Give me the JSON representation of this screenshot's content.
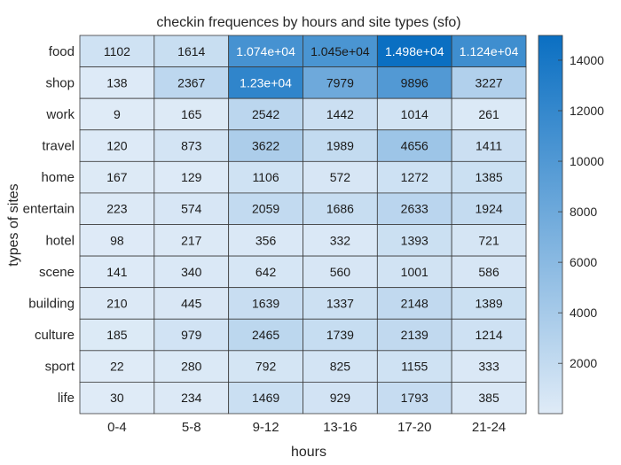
{
  "chart_data": {
    "type": "heatmap",
    "title": "checkin frequences by hours and site types (sfo)",
    "xlabel": "hours",
    "ylabel": "types of sites",
    "x_categories": [
      "0-4",
      "5-8",
      "9-12",
      "13-16",
      "17-20",
      "21-24"
    ],
    "y_categories": [
      "food",
      "shop",
      "work",
      "travel",
      "home",
      "entertain",
      "hotel",
      "scene",
      "building",
      "culture",
      "sport",
      "life"
    ],
    "values": [
      [
        1102,
        1614,
        10740,
        10450,
        14980,
        11240
      ],
      [
        138,
        2367,
        12300,
        7979,
        9896,
        3227
      ],
      [
        9,
        165,
        2542,
        1442,
        1014,
        261
      ],
      [
        120,
        873,
        3622,
        1989,
        4656,
        1411
      ],
      [
        167,
        129,
        1106,
        572,
        1272,
        1385
      ],
      [
        223,
        574,
        2059,
        1686,
        2633,
        1924
      ],
      [
        98,
        217,
        356,
        332,
        1393,
        721
      ],
      [
        141,
        340,
        642,
        560,
        1001,
        586
      ],
      [
        210,
        445,
        1639,
        1337,
        2148,
        1389
      ],
      [
        185,
        979,
        2465,
        1739,
        2139,
        1214
      ],
      [
        22,
        280,
        792,
        825,
        1155,
        333
      ],
      [
        30,
        234,
        1469,
        929,
        1793,
        385
      ]
    ],
    "cell_labels": [
      [
        "1102",
        "1614",
        "1.074e+04",
        "1.045e+04",
        "1.498e+04",
        "1.124e+04"
      ],
      [
        "138",
        "2367",
        "1.23e+04",
        "7979",
        "9896",
        "3227"
      ],
      [
        "9",
        "165",
        "2542",
        "1442",
        "1014",
        "261"
      ],
      [
        "120",
        "873",
        "3622",
        "1989",
        "4656",
        "1411"
      ],
      [
        "167",
        "129",
        "1106",
        "572",
        "1272",
        "1385"
      ],
      [
        "223",
        "574",
        "2059",
        "1686",
        "2633",
        "1924"
      ],
      [
        "98",
        "217",
        "356",
        "332",
        "1393",
        "721"
      ],
      [
        "141",
        "340",
        "642",
        "560",
        "1001",
        "586"
      ],
      [
        "210",
        "445",
        "1639",
        "1337",
        "2148",
        "1389"
      ],
      [
        "185",
        "979",
        "2465",
        "1739",
        "2139",
        "1214"
      ],
      [
        "22",
        "280",
        "792",
        "825",
        "1155",
        "333"
      ],
      [
        "30",
        "234",
        "1469",
        "929",
        "1793",
        "385"
      ]
    ],
    "colorbar": {
      "range": [
        9,
        14980
      ],
      "ticks": [
        2000,
        4000,
        6000,
        8000,
        10000,
        12000,
        14000
      ],
      "tick_labels": [
        "2000",
        "4000",
        "6000",
        "8000",
        "10000",
        "12000",
        "14000"
      ],
      "color_low": "#dfebf7",
      "color_high": "#0a6fc2"
    },
    "grid": true
  }
}
